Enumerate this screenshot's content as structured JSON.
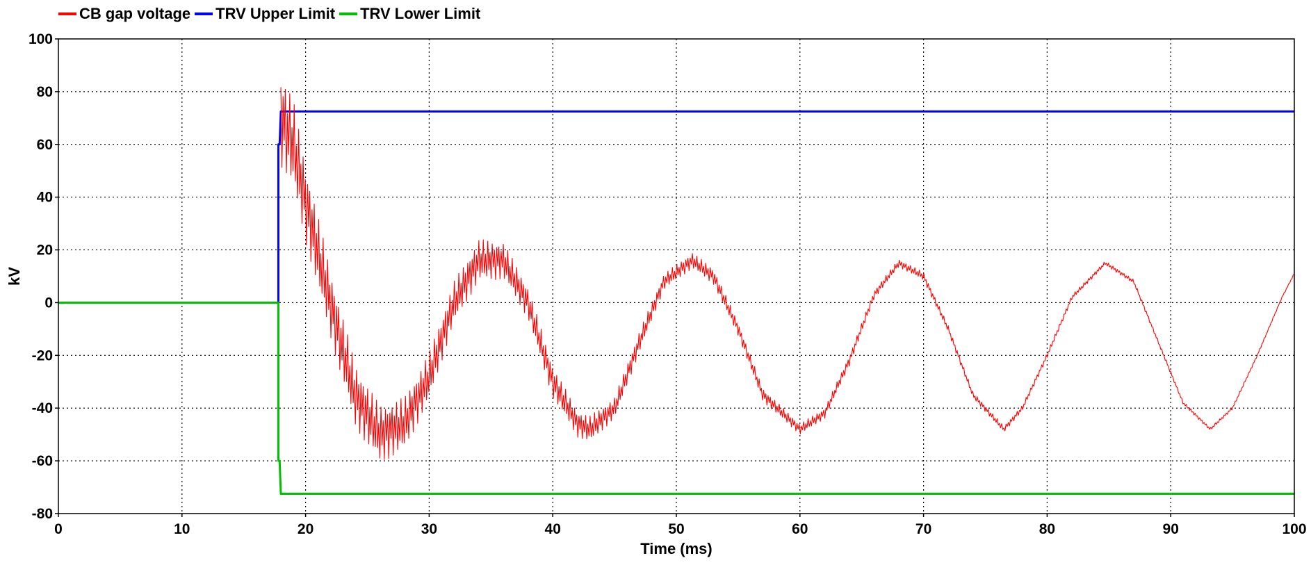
{
  "legend": {
    "items": [
      {
        "label": "CB gap voltage",
        "color": "#ff0000"
      },
      {
        "label": "TRV Upper Limit",
        "color": "#0000ff"
      },
      {
        "label": "TRV Lower Limit",
        "color": "#00c000"
      }
    ]
  },
  "chart_data": {
    "type": "line",
    "title": "",
    "xlabel": "Time (ms)",
    "ylabel": "kV",
    "xlim": [
      0,
      100
    ],
    "ylim": [
      -80,
      100
    ],
    "x_ticks": [
      "0",
      "10",
      "20",
      "30",
      "40",
      "50",
      "60",
      "70",
      "80",
      "90",
      "100"
    ],
    "y_ticks": [
      "100",
      "80",
      "60",
      "40",
      "20",
      "0",
      "-20",
      "-40",
      "-60",
      "-80"
    ],
    "grid": true,
    "legend_position": "top-left",
    "series": [
      {
        "name": "CB gap voltage",
        "color": "#ff0000",
        "x": [
          18.0,
          19.0,
          20.0,
          22.0,
          24.0,
          26.0,
          28.0,
          30.0,
          32.0,
          34.0,
          36.0,
          38.0,
          40.0,
          42.0,
          43.0,
          45.0,
          47.0,
          49.0,
          51.3,
          53.0,
          55.0,
          57.0,
          60.0,
          62.0,
          64.0,
          66.0,
          68.0,
          70.0,
          72.0,
          74.0,
          76.5,
          78.0,
          80.0,
          82.0,
          84.7,
          87.0,
          89.0,
          91.0,
          93.2,
          95.0,
          97.0,
          99.0,
          100.0
        ],
        "y": [
          70,
          60,
          38,
          0,
          -35,
          -50,
          -46,
          -28,
          0,
          16,
          16,
          0,
          -30,
          -46,
          -48,
          -40,
          -15,
          8,
          16,
          10,
          -10,
          -35,
          -48,
          -42,
          -22,
          3,
          15,
          10,
          -10,
          -35,
          -48,
          -40,
          -20,
          2,
          15,
          8,
          -15,
          -38,
          -48,
          -40,
          -20,
          2,
          11
        ],
        "noise_amplitude": [
          18,
          17,
          15,
          13,
          12,
          11,
          10,
          9,
          8,
          8,
          7,
          6,
          6,
          5,
          5,
          4,
          4,
          3,
          3,
          3,
          2.5,
          2.5,
          2,
          2,
          2,
          1.6,
          1.5,
          1.5,
          1.3,
          1.2,
          1.2,
          1.1,
          1,
          0.9,
          0.8,
          0.8,
          0.7,
          0.6,
          0.6,
          0.5,
          0.4,
          0.3,
          0.3
        ]
      },
      {
        "name": "TRV Upper Limit",
        "color": "#0000ff",
        "x": [
          0,
          17.8,
          17.8,
          17.9,
          18.0,
          100
        ],
        "y": [
          0,
          0,
          60,
          60,
          72.5,
          72.5
        ]
      },
      {
        "name": "TRV Lower Limit",
        "color": "#00c000",
        "x": [
          0,
          17.8,
          17.8,
          17.9,
          18.0,
          100
        ],
        "y": [
          0,
          0,
          -60,
          -60,
          -72.5,
          -72.5
        ]
      }
    ]
  }
}
